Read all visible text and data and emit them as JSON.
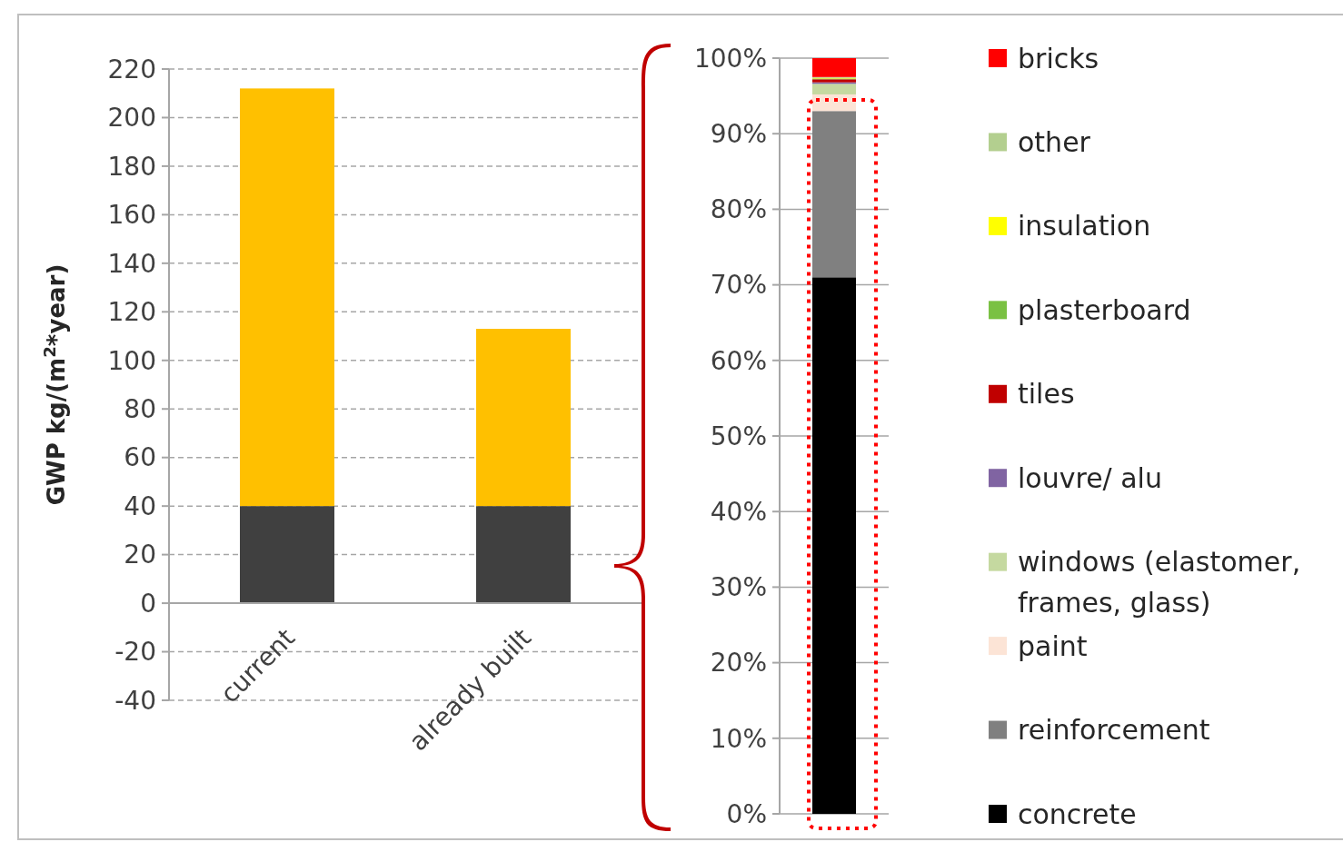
{
  "chart_data": [
    {
      "type": "bar",
      "stacked": true,
      "ylabel": "GWP kg/(m$^{2}$*year)",
      "categories": [
        "current",
        "already built"
      ],
      "series": [
        {
          "color": "#404040",
          "values": [
            40,
            40
          ]
        },
        {
          "color": "#ffc000",
          "values": [
            172,
            73
          ]
        }
      ],
      "ylim": [
        -40,
        220
      ],
      "yticks": [
        -40,
        -20,
        0,
        20,
        40,
        60,
        80,
        100,
        120,
        140,
        160,
        180,
        200,
        220
      ],
      "grid": "y",
      "line_style": "dashed",
      "legend": false
    },
    {
      "type": "bar",
      "stacked": true,
      "categories": [
        null
      ],
      "series": [
        {
          "name": "concrete",
          "color": "#000000",
          "values": [
            71
          ]
        },
        {
          "name": "reinforcement",
          "color": "#808080",
          "values": [
            22
          ]
        },
        {
          "name": "paint",
          "color": "#fce4d6",
          "values": [
            2.2
          ]
        },
        {
          "name": "windows (elastomer, frames, glass)",
          "color": "#c5d9a0",
          "values": [
            1.4
          ]
        },
        {
          "name": "louvre/ alu",
          "color": "#8064a2",
          "values": [
            0.2
          ]
        },
        {
          "name": "tiles",
          "color": "#c00000",
          "values": [
            0.4
          ]
        },
        {
          "name": "plasterboard",
          "color": "#7ac143",
          "values": [
            0.1
          ]
        },
        {
          "name": "insulation",
          "color": "#ffff00",
          "values": [
            0.1
          ]
        },
        {
          "name": "other",
          "color": "#b3cf8f",
          "values": [
            0.1
          ]
        },
        {
          "name": "bricks",
          "color": "#ff0000",
          "values": [
            2.5
          ]
        }
      ],
      "ylim": [
        0,
        100
      ],
      "yticks": [
        {
          "value": 0,
          "label": "0%"
        },
        {
          "value": 10,
          "label": "10%"
        },
        {
          "value": 20,
          "label": "20%"
        },
        {
          "value": 30,
          "label": "30%"
        },
        {
          "value": 40,
          "label": "40%"
        },
        {
          "value": 50,
          "label": "50%"
        },
        {
          "value": 60,
          "label": "60%"
        },
        {
          "value": 70,
          "label": "70%"
        },
        {
          "value": 80,
          "label": "80%"
        },
        {
          "value": 90,
          "label": "90%"
        },
        {
          "value": 100,
          "label": "100%"
        }
      ],
      "grid": "y",
      "line_style": "solid",
      "legend": "right"
    }
  ]
}
